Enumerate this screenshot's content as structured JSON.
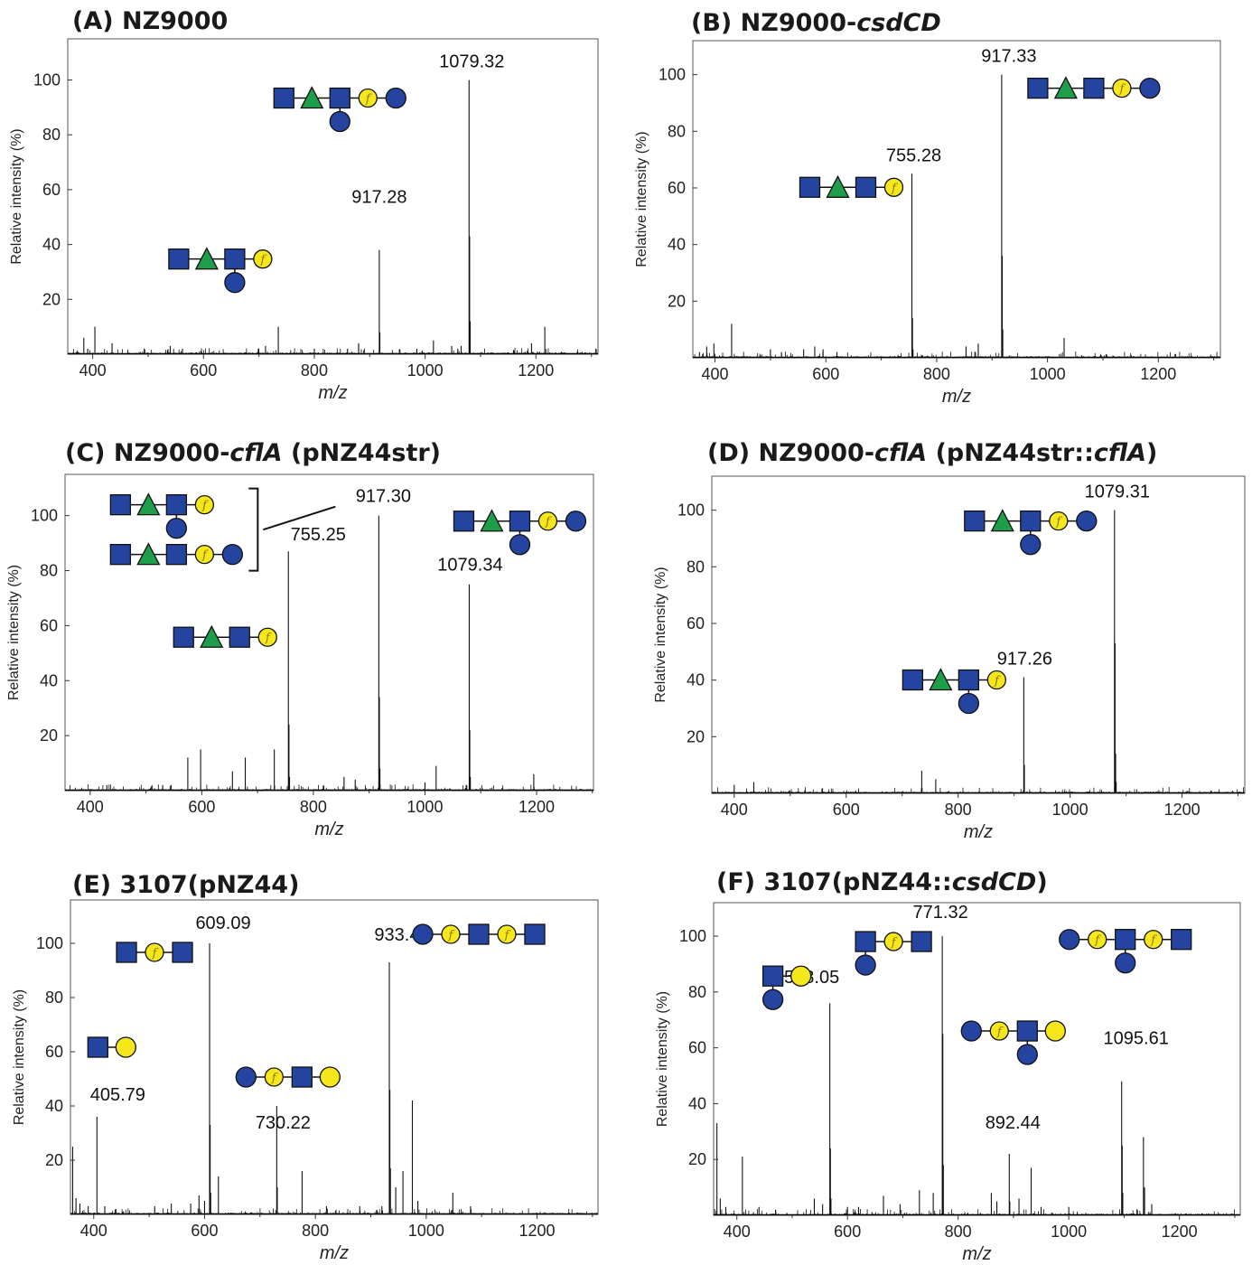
{
  "colors": {
    "hexnac_square": "#2444a0",
    "hexnac_circle": "#2444a0",
    "fuc_triangle": "#1e9e4a",
    "hex_circle": "#f6e61c",
    "f_label": "#8a7a00",
    "spectrum_line": "#111111",
    "text": "#1a1a1a"
  },
  "legend_note": "Blue square, green triangle, yellow circle marked 'f', blue circle and yellow circle glycan symbols",
  "chart_data": [
    {
      "id": "A",
      "type": "bar",
      "title": {
        "prefix": "(A) NZ9000",
        "italic": "",
        "suffix": ""
      },
      "xlabel": "m/z",
      "ylabel": "Relative intensity (%)",
      "xlim": [
        355,
        1312
      ],
      "ylim": [
        0,
        115
      ],
      "xticks": [
        400,
        600,
        800,
        1000,
        1200
      ],
      "yticks": [
        20,
        40,
        60,
        80,
        100
      ],
      "peaks": [
        [
          384,
          6
        ],
        [
          391,
          2
        ],
        [
          404,
          10
        ],
        [
          435,
          4
        ],
        [
          540,
          3
        ],
        [
          562,
          2
        ],
        [
          712,
          3
        ],
        [
          735,
          10
        ],
        [
          800,
          2
        ],
        [
          860,
          2
        ],
        [
          880,
          4
        ],
        [
          917.28,
          38
        ],
        [
          918.3,
          8
        ],
        [
          985,
          2
        ],
        [
          1015,
          5
        ],
        [
          1048,
          3
        ],
        [
          1059,
          2
        ],
        [
          1065,
          3
        ],
        [
          1079.32,
          100
        ],
        [
          1080.3,
          43
        ],
        [
          1081.3,
          12
        ],
        [
          1192,
          4
        ],
        [
          1216,
          10
        ]
      ],
      "labels": [
        {
          "text": "1079.32",
          "x": 1079.32,
          "y": 100,
          "dx": 3,
          "dy": -14
        },
        {
          "text": "917.28",
          "x": 917.28,
          "y": 38,
          "dx": 0,
          "dy": -52
        }
      ],
      "glycans": [
        {
          "x": 1079.32,
          "y": 100,
          "dx": -205,
          "dy": 20,
          "main": [
            "sq",
            "tri",
            "sq",
            "f",
            "cb"
          ],
          "branches": [
            {
              "at": 2,
              "sym": "cb"
            }
          ]
        },
        {
          "x": 917.28,
          "y": 38,
          "dx": -222,
          "dy": 10,
          "main": [
            "sq",
            "tri",
            "sq",
            "f"
          ],
          "branches": [
            {
              "at": 2,
              "sym": "cb"
            }
          ]
        }
      ]
    },
    {
      "id": "B",
      "type": "bar",
      "title": {
        "prefix": "(B) NZ9000-",
        "italic": "csdCD",
        "suffix": ""
      },
      "xlabel": "m/z",
      "ylabel": "Relative intensity (%)",
      "xlim": [
        360,
        1312
      ],
      "ylim": [
        0,
        112
      ],
      "xticks": [
        400,
        600,
        800,
        1000,
        1200
      ],
      "yticks": [
        20,
        40,
        60,
        80,
        100
      ],
      "peaks": [
        [
          372,
          2
        ],
        [
          385,
          4
        ],
        [
          398,
          5
        ],
        [
          430,
          12
        ],
        [
          500,
          3
        ],
        [
          520,
          2
        ],
        [
          560,
          3
        ],
        [
          580,
          4
        ],
        [
          595,
          3
        ],
        [
          620,
          2
        ],
        [
          755.28,
          65
        ],
        [
          756.3,
          14
        ],
        [
          757.3,
          3
        ],
        [
          853,
          4
        ],
        [
          875,
          5
        ],
        [
          917.33,
          100
        ],
        [
          918.3,
          36
        ],
        [
          919.3,
          10
        ],
        [
          1030,
          7
        ]
      ],
      "labels": [
        {
          "text": "917.33",
          "x": 917.33,
          "y": 100,
          "dx": 8,
          "dy": -14
        },
        {
          "text": "755.28",
          "x": 755.28,
          "y": 65,
          "dx": 2,
          "dy": -14
        }
      ],
      "glycans": [
        {
          "x": 917.33,
          "y": 100,
          "dx": 40,
          "dy": 15,
          "main": [
            "sq",
            "tri",
            "sq",
            "f",
            "cb"
          ],
          "branches": []
        },
        {
          "x": 755.28,
          "y": 65,
          "dx": -113,
          "dy": 15,
          "main": [
            "sq",
            "tri",
            "sq",
            "f"
          ],
          "branches": []
        }
      ]
    },
    {
      "id": "C",
      "type": "bar",
      "title": {
        "prefix": "(C) NZ9000-",
        "italic": "cflA",
        "suffix": " (pNZ44str)"
      },
      "xlabel": "m/z",
      "ylabel": "Relative intensity (%)",
      "xlim": [
        355,
        1302
      ],
      "ylim": [
        0,
        115
      ],
      "xticks": [
        400,
        600,
        800,
        1000,
        1200
      ],
      "yticks": [
        20,
        40,
        60,
        80,
        100
      ],
      "peaks": [
        [
          430,
          2
        ],
        [
          530,
          2
        ],
        [
          545,
          2
        ],
        [
          575,
          12
        ],
        [
          598,
          15
        ],
        [
          655,
          7
        ],
        [
          678,
          12
        ],
        [
          730,
          15
        ],
        [
          755.25,
          87
        ],
        [
          756.3,
          24
        ],
        [
          757.3,
          5
        ],
        [
          855,
          5
        ],
        [
          875,
          4
        ],
        [
          917.3,
          100
        ],
        [
          918.3,
          34
        ],
        [
          919.3,
          8
        ],
        [
          1000,
          3
        ],
        [
          1020,
          9
        ],
        [
          1079.34,
          75
        ],
        [
          1080.3,
          22
        ],
        [
          1081.3,
          5
        ],
        [
          1195,
          6
        ]
      ],
      "labels": [
        {
          "text": "917.30",
          "x": 917.3,
          "y": 100,
          "dx": 5,
          "dy": -15
        },
        {
          "text": "755.25",
          "x": 755.25,
          "y": 87,
          "dx": 33,
          "dy": -12
        },
        {
          "text": "1079.34",
          "x": 1079.34,
          "y": 75,
          "dx": 1,
          "dy": -15
        }
      ],
      "glycans": [
        {
          "x": 1079.34,
          "y": 75,
          "dx": -6,
          "dy": -70,
          "main": [
            "sq",
            "tri",
            "sq",
            "f",
            "cb"
          ],
          "branches": [
            {
              "at": 2,
              "sym": "cb"
            }
          ]
        },
        {
          "x": 755.25,
          "y": 87,
          "dx": -116,
          "dy": 95,
          "main": [
            "sq",
            "tri",
            "sq",
            "f"
          ],
          "branches": []
        },
        {
          "x": 917.3,
          "y": 100,
          "dx": -286,
          "dy": -12,
          "main": [
            "sq",
            "tri",
            "sq",
            "f"
          ],
          "branches": [
            {
              "at": 2,
              "sym": "cb"
            }
          ]
        },
        {
          "x": 917.3,
          "y": 100,
          "dx": -286,
          "dy": 43,
          "main": [
            "sq",
            "tri",
            "sq",
            "f",
            "cb"
          ],
          "branches": []
        }
      ]
    },
    {
      "id": "D",
      "type": "bar",
      "title": {
        "prefix": "(D) NZ9000-",
        "italic": "cflA",
        "suffix": " (pNZ44str::",
        "italic2": "cflA",
        "suffix2": ")"
      },
      "xlabel": "m/z",
      "ylabel": "Relative intensity (%)",
      "xlim": [
        360,
        1312
      ],
      "ylim": [
        0,
        112
      ],
      "xticks": [
        400,
        600,
        800,
        1000,
        1200
      ],
      "yticks": [
        20,
        40,
        60,
        80,
        100
      ],
      "peaks": [
        [
          400,
          3
        ],
        [
          435,
          4
        ],
        [
          735,
          8
        ],
        [
          760,
          5
        ],
        [
          917.26,
          41
        ],
        [
          918.3,
          10
        ],
        [
          1079.31,
          100
        ],
        [
          1080.3,
          53
        ],
        [
          1081.3,
          14
        ],
        [
          1082.3,
          4
        ]
      ],
      "labels": [
        {
          "text": "1079.31",
          "x": 1079.31,
          "y": 100,
          "dx": 3,
          "dy": -14
        },
        {
          "text": "917.26",
          "x": 917.26,
          "y": 41,
          "dx": 1,
          "dy": -14
        }
      ],
      "glycans": [
        {
          "x": 1079.31,
          "y": 100,
          "dx": -155,
          "dy": 12,
          "main": [
            "sq",
            "tri",
            "sq",
            "f",
            "cb"
          ],
          "branches": [
            {
              "at": 2,
              "sym": "cb"
            }
          ]
        },
        {
          "x": 917.26,
          "y": 41,
          "dx": -123,
          "dy": 3,
          "main": [
            "sq",
            "tri",
            "sq",
            "f"
          ],
          "branches": [
            {
              "at": 2,
              "sym": "cb"
            }
          ]
        }
      ]
    },
    {
      "id": "E",
      "type": "bar",
      "title": {
        "prefix": "(E) 3107(pNZ44)",
        "italic": "",
        "suffix": ""
      },
      "xlabel": "m/z",
      "ylabel": "Relative intensity (%)",
      "xlim": [
        358,
        1310
      ],
      "ylim": [
        0,
        116
      ],
      "xticks": [
        400,
        600,
        800,
        1000,
        1200
      ],
      "yticks": [
        20,
        40,
        60,
        80,
        100
      ],
      "peaks": [
        [
          362,
          25
        ],
        [
          368,
          6
        ],
        [
          375,
          4
        ],
        [
          390,
          3
        ],
        [
          405.79,
          36
        ],
        [
          420,
          3
        ],
        [
          440,
          2
        ],
        [
          510,
          3
        ],
        [
          540,
          4
        ],
        [
          575,
          4
        ],
        [
          590,
          7
        ],
        [
          600,
          5
        ],
        [
          609.09,
          100
        ],
        [
          610.1,
          33
        ],
        [
          611.1,
          8
        ],
        [
          625,
          14
        ],
        [
          730.22,
          40
        ],
        [
          731.2,
          10
        ],
        [
          776,
          16
        ],
        [
          820,
          3
        ],
        [
          880,
          3
        ],
        [
          920,
          3
        ],
        [
          933.43,
          93
        ],
        [
          934.4,
          46
        ],
        [
          935.4,
          17
        ],
        [
          945,
          10
        ],
        [
          958,
          16
        ],
        [
          975,
          42
        ],
        [
          985,
          5
        ],
        [
          1048,
          8
        ],
        [
          1080,
          3
        ]
      ],
      "labels": [
        {
          "text": "609.09",
          "x": 609.09,
          "y": 100,
          "dx": 15,
          "dy": -16
        },
        {
          "text": "933.43",
          "x": 933.43,
          "y": 93,
          "dx": 14,
          "dy": -24
        },
        {
          "text": "405.79",
          "x": 405.79,
          "y": 36,
          "dx": 23,
          "dy": -18
        },
        {
          "text": "730.22",
          "x": 730.22,
          "y": 40,
          "dx": 7,
          "dy": 25
        }
      ],
      "glycans": [
        {
          "x": 609.09,
          "y": 100,
          "dx": -92,
          "dy": 10,
          "main": [
            "sq",
            "f",
            "sq"
          ],
          "branches": []
        },
        {
          "x": 933.43,
          "y": 93,
          "dx": 37,
          "dy": -31,
          "main": [
            "cb",
            "f",
            "sq",
            "f",
            "sq"
          ],
          "branches": []
        },
        {
          "x": 405.79,
          "y": 36,
          "dx": 1,
          "dy": -77,
          "main": [
            "sq",
            "cy"
          ],
          "branches": []
        },
        {
          "x": 730.22,
          "y": 40,
          "dx": -34,
          "dy": -32,
          "main": [
            "cb",
            "f",
            "sq",
            "cy"
          ],
          "branches": []
        }
      ]
    },
    {
      "id": "F",
      "type": "bar",
      "title": {
        "prefix": "(F) 3107(pNZ44::",
        "italic": "csdCD",
        "suffix": ")"
      },
      "xlabel": "m/z",
      "ylabel": "Relative intensity (%)",
      "xlim": [
        358,
        1310
      ],
      "ylim": [
        0,
        112
      ],
      "xticks": [
        400,
        600,
        800,
        1000,
        1200
      ],
      "yticks": [
        20,
        40,
        60,
        80,
        100
      ],
      "peaks": [
        [
          364,
          33
        ],
        [
          370,
          6
        ],
        [
          380,
          3
        ],
        [
          410,
          21
        ],
        [
          440,
          3
        ],
        [
          470,
          2
        ],
        [
          540,
          6
        ],
        [
          555,
          4
        ],
        [
          568.05,
          76
        ],
        [
          569.1,
          24
        ],
        [
          570.1,
          6
        ],
        [
          600,
          3
        ],
        [
          620,
          3
        ],
        [
          665,
          7
        ],
        [
          695,
          4
        ],
        [
          730,
          9
        ],
        [
          755,
          8
        ],
        [
          771.32,
          100
        ],
        [
          772.3,
          65
        ],
        [
          773.3,
          18
        ],
        [
          860,
          8
        ],
        [
          870,
          5
        ],
        [
          892.44,
          22
        ],
        [
          893.4,
          5
        ],
        [
          910,
          6
        ],
        [
          932,
          17
        ],
        [
          950,
          3
        ],
        [
          1000,
          3
        ],
        [
          1095.61,
          48
        ],
        [
          1096.6,
          25
        ],
        [
          1097.6,
          8
        ],
        [
          1135,
          28
        ],
        [
          1137,
          10
        ],
        [
          1150,
          4
        ]
      ],
      "labels": [
        {
          "text": "771.32",
          "x": 771.32,
          "y": 100,
          "dx": -2,
          "dy": -20
        },
        {
          "text": "568.05",
          "x": 568.05,
          "y": 76,
          "dx": -20,
          "dy": -22
        },
        {
          "text": "892.44",
          "x": 892.44,
          "y": 22,
          "dx": 4,
          "dy": -28
        },
        {
          "text": "1095.61",
          "x": 1095.61,
          "y": 48,
          "dx": 16,
          "dy": -41
        }
      ],
      "glycans": [
        {
          "x": 771.32,
          "y": 100,
          "dx": -85,
          "dy": 6,
          "main": [
            "sq",
            "f",
            "sq"
          ],
          "branches": [
            {
              "at": 0,
              "sym": "cb"
            }
          ]
        },
        {
          "x": 568.05,
          "y": 76,
          "dx": -63,
          "dy": -30,
          "main": [
            "sq",
            "cy"
          ],
          "branches": [
            {
              "at": 0,
              "sym": "cb"
            }
          ]
        },
        {
          "x": 892.44,
          "y": 22,
          "dx": -42,
          "dy": -136,
          "main": [
            "cb",
            "f",
            "sq",
            "cy"
          ],
          "branches": [
            {
              "at": 2,
              "sym": "cb"
            }
          ]
        },
        {
          "x": 1095.61,
          "y": 48,
          "dx": -58,
          "dy": -157,
          "main": [
            "cb",
            "f",
            "sq",
            "f",
            "sq"
          ],
          "branches": [
            {
              "at": 2,
              "sym": "cb"
            }
          ]
        }
      ]
    }
  ]
}
